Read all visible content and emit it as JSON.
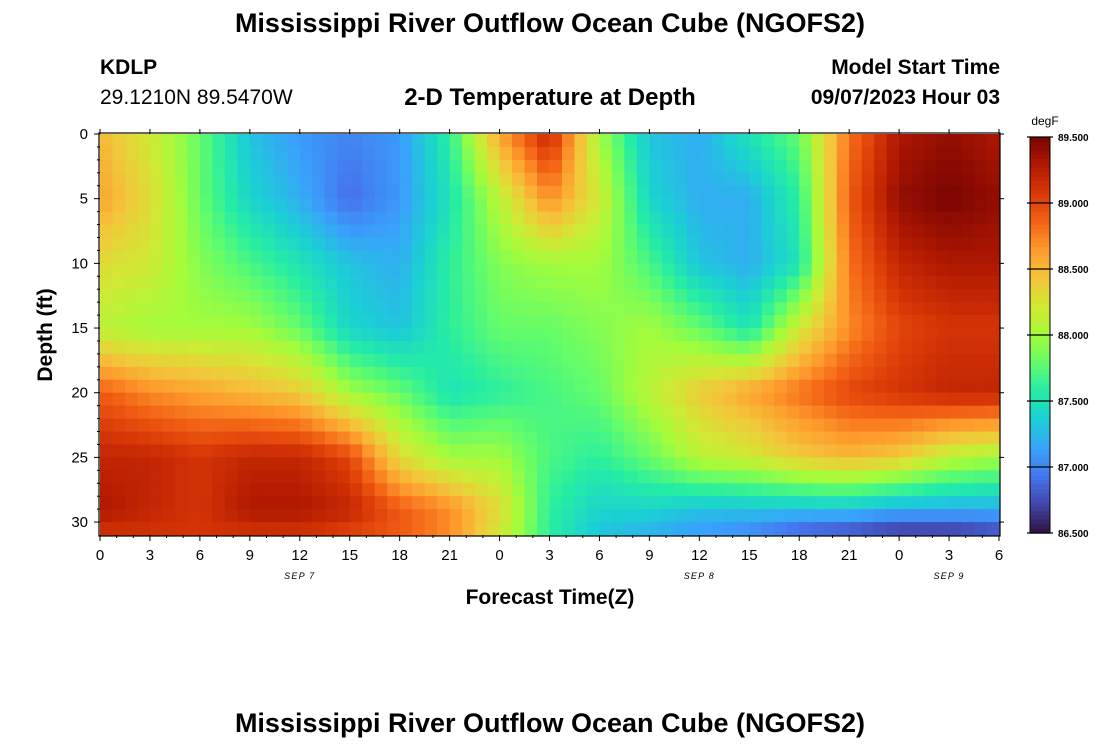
{
  "page": {
    "title_top": "Mississippi River Outflow Ocean Cube (NGOFS2)",
    "title_bottom": "Mississippi River Outflow Ocean Cube (NGOFS2)",
    "station_id": "KDLP",
    "coordinates": "29.1210N  89.5470W",
    "subtitle": "2-D Temperature at Depth",
    "model_start_label": "Model Start Time",
    "model_start_value": "09/07/2023 Hour 03"
  },
  "colors": {
    "scale": [
      "#30123b",
      "#4145ab",
      "#4675ed",
      "#39a2fc",
      "#1bcfd4",
      "#24eca6",
      "#61fc6c",
      "#a4fc3b",
      "#d1e834",
      "#f3c63a",
      "#fe9b2d",
      "#f36315",
      "#d93806",
      "#b11901",
      "#7a0402"
    ]
  },
  "chart_data": {
    "type": "heatmap",
    "xlabel": "Forecast Time(Z)",
    "ylabel": "Depth (ft)",
    "x_ticks": [
      "0",
      "3",
      "6",
      "9",
      "12",
      "15",
      "18",
      "21",
      "0",
      "3",
      "6",
      "9",
      "12",
      "15",
      "18",
      "21",
      "0",
      "3",
      "6"
    ],
    "x_date_labels": [
      {
        "text": "SEP 7",
        "at_hour": 12
      },
      {
        "text": "SEP 8",
        "at_hour": 36
      },
      {
        "text": "SEP 9",
        "at_hour": 51
      }
    ],
    "x_range_hours": [
      0,
      54
    ],
    "y_ticks": [
      0,
      5,
      10,
      15,
      20,
      25,
      30
    ],
    "ylim": [
      0,
      31
    ],
    "colorbar": {
      "unit": "degF",
      "range": [
        86.5,
        89.5
      ],
      "tick_labels": [
        "89.500",
        "89.000",
        "88.500",
        "88.000",
        "87.500",
        "87.000",
        "86.500"
      ]
    },
    "grid_x_hours": [
      0,
      3,
      6,
      9,
      12,
      15,
      18,
      21,
      24,
      27,
      30,
      33,
      36,
      39,
      42,
      45,
      48,
      51,
      54
    ],
    "grid_depths_ft": [
      0,
      5,
      10,
      15,
      20,
      25,
      29,
      31
    ],
    "temperature_degF": [
      [
        88.5,
        88.2,
        87.8,
        87.3,
        87.1,
        87.0,
        87.1,
        87.6,
        88.6,
        89.2,
        88.0,
        87.3,
        87.2,
        87.5,
        87.8,
        88.8,
        89.3,
        89.4,
        89.3
      ],
      [
        88.6,
        88.3,
        87.8,
        87.4,
        87.2,
        86.9,
        87.1,
        87.5,
        88.1,
        88.7,
        88.2,
        87.4,
        87.2,
        87.2,
        87.6,
        88.9,
        89.4,
        89.5,
        89.4
      ],
      [
        88.3,
        88.2,
        87.9,
        87.7,
        87.5,
        87.3,
        87.2,
        87.6,
        87.9,
        88.0,
        88.0,
        87.7,
        87.3,
        87.2,
        87.5,
        88.8,
        89.2,
        89.3,
        89.3
      ],
      [
        88.1,
        88.0,
        88.0,
        88.0,
        87.8,
        87.4,
        87.3,
        87.6,
        87.8,
        87.8,
        87.9,
        88.0,
        87.8,
        87.5,
        88.2,
        88.7,
        89.0,
        89.1,
        89.1
      ],
      [
        88.9,
        88.7,
        88.6,
        88.5,
        88.4,
        88.0,
        87.8,
        87.5,
        87.6,
        87.7,
        87.8,
        88.1,
        88.4,
        88.6,
        88.8,
        89.0,
        89.1,
        89.2,
        89.2
      ],
      [
        89.2,
        89.2,
        89.1,
        89.2,
        89.2,
        89.0,
        88.3,
        88.0,
        88.0,
        87.7,
        87.6,
        87.8,
        88.1,
        88.2,
        88.4,
        88.5,
        88.4,
        88.1,
        88.0
      ],
      [
        89.3,
        89.2,
        89.1,
        89.3,
        89.3,
        89.2,
        88.9,
        88.7,
        88.3,
        87.6,
        87.4,
        87.4,
        87.3,
        87.3,
        87.3,
        87.3,
        87.2,
        87.2,
        87.2
      ],
      [
        89.1,
        89.1,
        89.1,
        89.1,
        89.1,
        89.0,
        88.9,
        88.7,
        88.2,
        87.6,
        87.3,
        87.2,
        87.1,
        87.0,
        86.8,
        86.7,
        86.6,
        86.6,
        86.7
      ]
    ]
  }
}
